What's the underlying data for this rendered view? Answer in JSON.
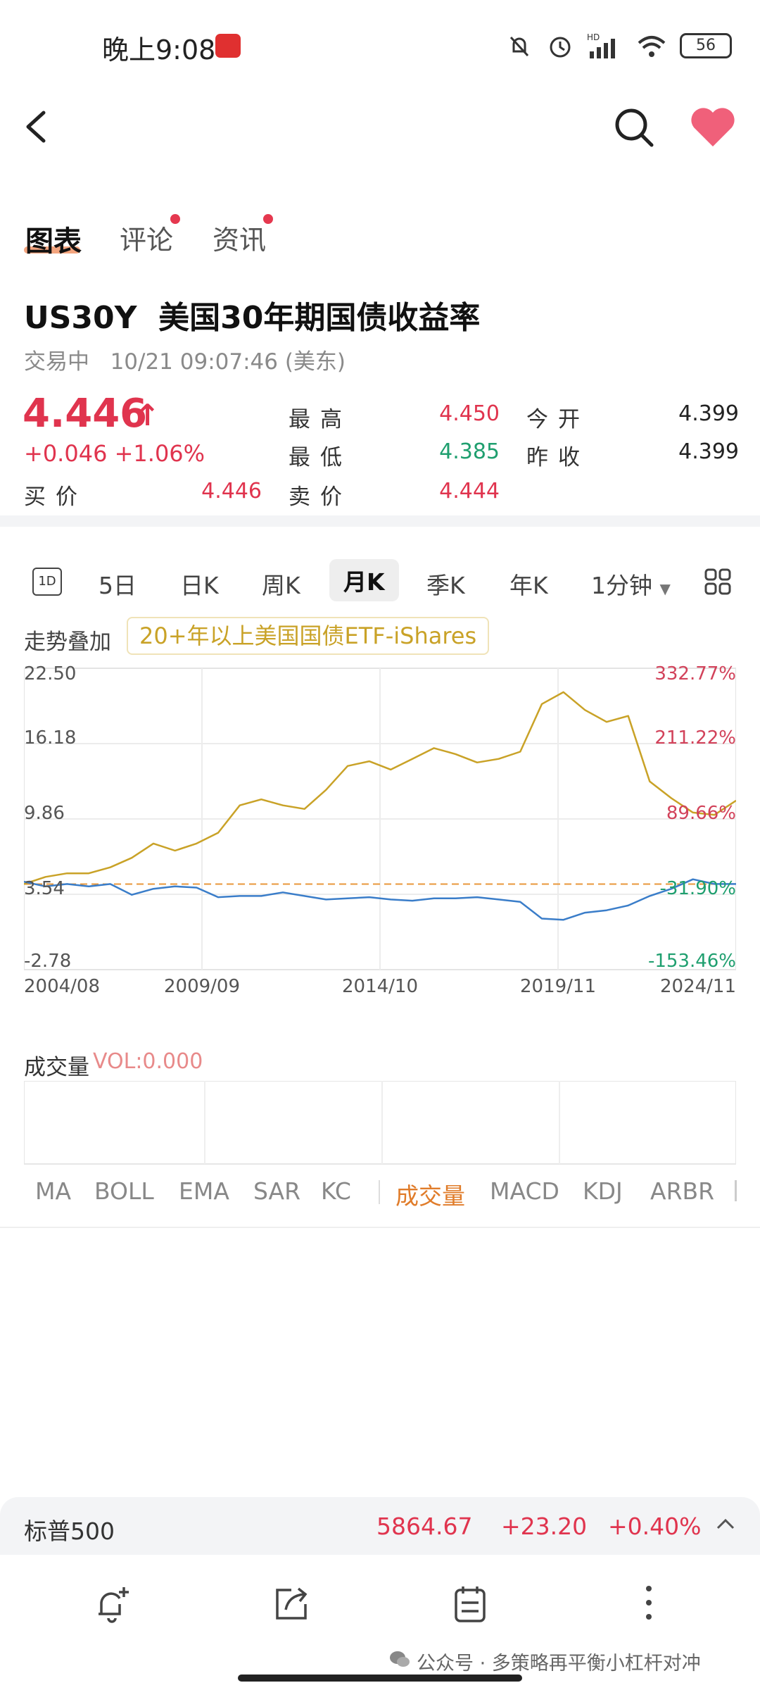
{
  "status_bar": {
    "time": "晚上9:08",
    "battery": "56",
    "network": "HD"
  },
  "nav": {
    "back_icon": "back-arrow-icon",
    "search_icon": "search-icon",
    "favorite_icon": "heart-icon",
    "favorite_color": "#f0607a"
  },
  "tabs": [
    {
      "label": "图表",
      "active": true,
      "dot": false
    },
    {
      "label": "评论",
      "active": false,
      "dot": true
    },
    {
      "label": "资讯",
      "active": false,
      "dot": true
    }
  ],
  "quote": {
    "symbol": "US30Y",
    "name": "美国30年期国债收益率",
    "status": "交易中",
    "time": "10/21 09:07:46 (美东)",
    "price": "4.446",
    "arrow": "↑",
    "change": "+0.046",
    "change_pct": "+1.06%",
    "high_label": "最高",
    "high": "4.450",
    "open_label": "今开",
    "open": "4.399",
    "low_label": "最低",
    "low": "4.385",
    "prev_close_label": "昨收",
    "prev_close": "4.399",
    "bid_label": "买价",
    "bid": "4.446",
    "ask_label": "卖价",
    "ask": "4.444"
  },
  "periods": {
    "icon_1d": "1D",
    "items": [
      "5日",
      "日K",
      "周K",
      "月K",
      "季K",
      "年K",
      "1分钟"
    ],
    "active": "月K"
  },
  "overlay": {
    "label": "走势叠加",
    "instrument": "20+年以上美国国债ETF-iShares"
  },
  "chart_data": {
    "type": "line",
    "y_left_ticks": [
      "22.50",
      "16.18",
      "9.86",
      "3.54",
      "-2.78"
    ],
    "y_right_ticks": [
      "332.77%",
      "211.22%",
      "89.66%",
      "-31.90%",
      "-153.46%"
    ],
    "x_ticks": [
      "2004/08",
      "2009/09",
      "2014/10",
      "2019/11",
      "2024/11"
    ],
    "ylim": [
      -2.78,
      22.5
    ],
    "reference_line": 4.399,
    "series": [
      {
        "name": "20+年以上美国国债ETF-iShares",
        "color": "#c9a227",
        "values": [
          4.4,
          5.0,
          5.3,
          5.3,
          5.8,
          6.6,
          7.8,
          7.2,
          7.8,
          8.7,
          11.0,
          11.5,
          11.0,
          10.7,
          12.3,
          14.3,
          14.7,
          14.0,
          14.9,
          15.8,
          15.3,
          14.6,
          14.9,
          15.5,
          19.5,
          20.5,
          19.0,
          18.0,
          18.5,
          13.0,
          11.6,
          10.4,
          10.2,
          11.4
        ]
      },
      {
        "name": "US30Y",
        "color": "#3a7dc9",
        "values": [
          4.6,
          4.2,
          4.4,
          4.2,
          4.4,
          3.5,
          4.0,
          4.2,
          4.1,
          3.3,
          3.4,
          3.4,
          3.7,
          3.4,
          3.1,
          3.2,
          3.3,
          3.1,
          3.0,
          3.2,
          3.2,
          3.3,
          3.1,
          2.9,
          1.5,
          1.4,
          2.0,
          2.2,
          2.6,
          3.4,
          4.0,
          4.8,
          4.4,
          4.4
        ]
      }
    ]
  },
  "volume": {
    "label": "成交量",
    "value": "VOL:0.000"
  },
  "indicators": {
    "items": [
      "MA",
      "BOLL",
      "EMA",
      "SAR",
      "KC",
      "成交量",
      "MACD",
      "KDJ",
      "ARBR"
    ],
    "active": "成交量"
  },
  "ticker": {
    "name": "标普500",
    "price": "5864.67",
    "change": "+23.20",
    "pct": "+0.40%"
  },
  "bottom_bar": {
    "icons": [
      "bell-add-icon",
      "share-icon",
      "notes-icon",
      "more-icon"
    ]
  },
  "watermark": "公众号 · 多策略再平衡小杠杆对冲"
}
